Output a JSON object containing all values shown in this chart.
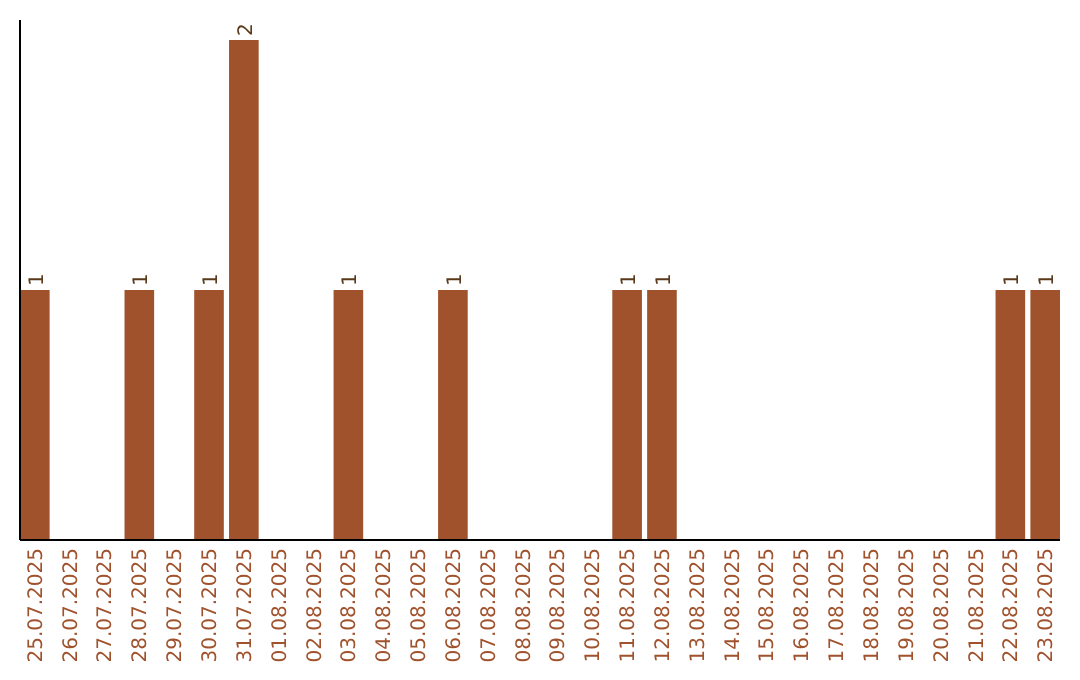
{
  "chart_data": {
    "type": "bar",
    "categories": [
      "25.07.2025",
      "26.07.2025",
      "27.07.2025",
      "28.07.2025",
      "29.07.2025",
      "30.07.2025",
      "31.07.2025",
      "01.08.2025",
      "02.08.2025",
      "03.08.2025",
      "04.08.2025",
      "05.08.2025",
      "06.08.2025",
      "07.08.2025",
      "08.08.2025",
      "09.08.2025",
      "10.08.2025",
      "11.08.2025",
      "12.08.2025",
      "13.08.2025",
      "14.08.2025",
      "15.08.2025",
      "16.08.2025",
      "17.08.2025",
      "18.08.2025",
      "19.08.2025",
      "20.08.2025",
      "21.08.2025",
      "22.08.2025",
      "23.08.2025"
    ],
    "values": [
      1,
      null,
      null,
      1,
      null,
      1,
      2,
      null,
      null,
      1,
      null,
      null,
      1,
      null,
      null,
      null,
      null,
      1,
      1,
      null,
      null,
      null,
      null,
      null,
      null,
      null,
      null,
      null,
      1,
      1
    ],
    "color": "#a0522d",
    "ylim": [
      0,
      2.08
    ],
    "tick_labels": "x",
    "data_labels": true
  }
}
